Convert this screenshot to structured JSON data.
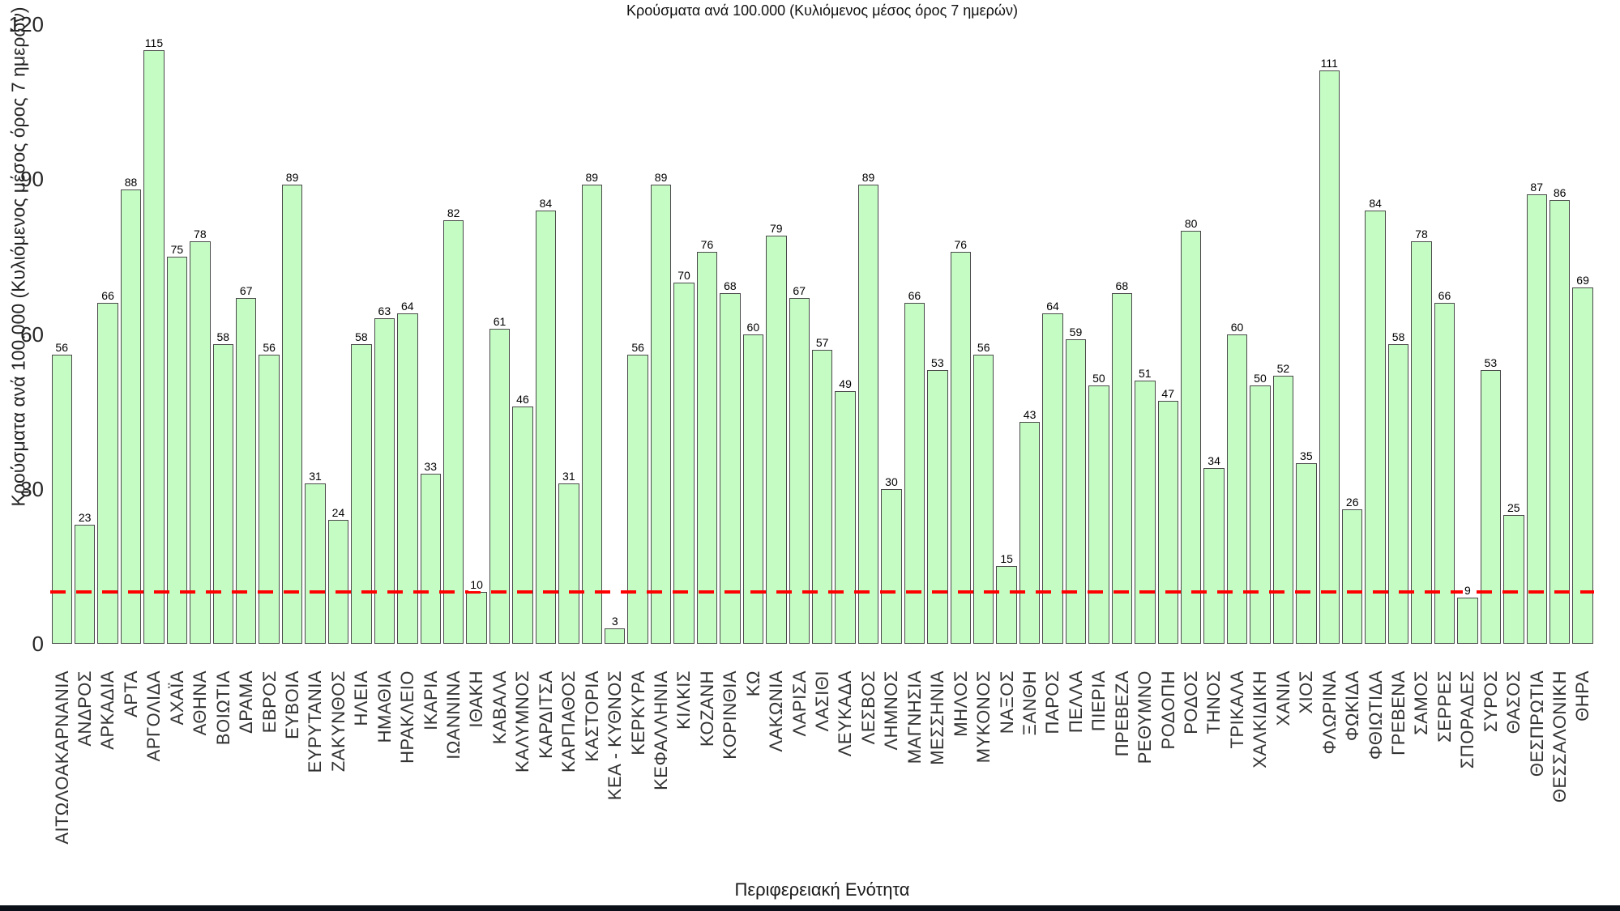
{
  "chart_data": {
    "type": "bar",
    "title": "Κρούσματα ανά 100.000 (Κυλιόμενος μέσος όρος 7 ημερών)",
    "xlabel": "Περιφερειακή Ενότητα",
    "ylabel": "Κρούσματα ανά 100.000 (Κυλιόμενος μέσος όρος 7 ημερών)",
    "ylim": [
      0,
      120
    ],
    "yticks": [
      0,
      30,
      60,
      90,
      120
    ],
    "grid": false,
    "legend": null,
    "value_labels_shown": true,
    "bar_color": "#c4fcc4",
    "bar_border_color": "#4a4a4a",
    "threshold_line": {
      "value": 10,
      "color": "#ff0000",
      "style": "dashed"
    },
    "categories": [
      "ΑΙΤΩΛΟΑΚΑΡΝΑΝΙΑ",
      "ΑΝΔΡΟΣ",
      "ΑΡΚΑΔΙΑ",
      "ΑΡΤΑ",
      "ΑΡΓΟΛΙΔΑ",
      "ΑΧΑΪΑ",
      "ΑΘΗΝΑ",
      "ΒΟΙΩΤΙΑ",
      "ΔΡΑΜΑ",
      "ΕΒΡΟΣ",
      "ΕΥΒΟΙΑ",
      "ΕΥΡΥΤΑΝΙΑ",
      "ΖΑΚΥΝΘΟΣ",
      "ΗΛΕΙΑ",
      "ΗΜΑΘΙΑ",
      "ΗΡΑΚΛΕΙΟ",
      "ΙΚΑΡΙΑ",
      "ΙΩΑΝΝΙΝΑ",
      "ΙΘΑΚΗ",
      "ΚΑΒΑΛΑ",
      "ΚΑΛΥΜΝΟΣ",
      "ΚΑΡΔΙΤΣΑ",
      "ΚΑΡΠΑΘΟΣ",
      "ΚΑΣΤΟΡΙΑ",
      "ΚΕΑ - ΚΥΘΝΟΣ",
      "ΚΕΡΚΥΡΑ",
      "ΚΕΦΑΛΛΗΝΙΑ",
      "ΚΙΛΚΙΣ",
      "ΚΟΖΑΝΗ",
      "ΚΟΡΙΝΘΙΑ",
      "ΚΩ",
      "ΛΑΚΩΝΙΑ",
      "ΛΑΡΙΣΑ",
      "ΛΑΣΙΘΙ",
      "ΛΕΥΚΑΔΑ",
      "ΛΕΣΒΟΣ",
      "ΛΗΜΝΟΣ",
      "ΜΑΓΝΗΣΙΑ",
      "ΜΕΣΣΗΝΙΑ",
      "ΜΗΛΟΣ",
      "ΜΥΚΟΝΟΣ",
      "ΝΑΞΟΣ",
      "ΞΑΝΘΗ",
      "ΠΑΡΟΣ",
      "ΠΕΛΛΑ",
      "ΠΙΕΡΙΑ",
      "ΠΡΕΒΕΖΑ",
      "ΡΕΘΥΜΝΟ",
      "ΡΟΔΟΠΗ",
      "ΡΟΔΟΣ",
      "ΤΗΝΟΣ",
      "ΤΡΙΚΑΛΑ",
      "ΧΑΛΚΙΔΙΚΗ",
      "ΧΑΝΙΑ",
      "ΧΙΟΣ",
      "ΦΛΩΡΙΝΑ",
      "ΦΩΚΙΔΑ",
      "ΦΘΙΩΤΙΔΑ",
      "ΓΡΕΒΕΝΑ",
      "ΣΑΜΟΣ",
      "ΣΕΡΡΕΣ",
      "ΣΠΟΡΑΔΕΣ",
      "ΣΥΡΟΣ",
      "ΘΑΣΟΣ",
      "ΘΕΣΠΡΩΤΙΑ",
      "ΘΕΣΣΑΛΟΝΙΚΗ",
      "ΘΗΡΑ"
    ],
    "values": [
      56,
      23,
      66,
      88,
      115,
      75,
      78,
      58,
      67,
      56,
      89,
      31,
      24,
      58,
      63,
      64,
      33,
      82,
      10,
      61,
      46,
      84,
      31,
      89,
      3,
      56,
      89,
      70,
      76,
      68,
      60,
      79,
      67,
      57,
      49,
      89,
      30,
      66,
      53,
      76,
      56,
      15,
      43,
      64,
      59,
      50,
      68,
      51,
      47,
      80,
      34,
      60,
      50,
      52,
      35,
      111,
      26,
      84,
      58,
      78,
      66,
      9,
      53,
      25,
      87,
      86,
      69
    ]
  }
}
